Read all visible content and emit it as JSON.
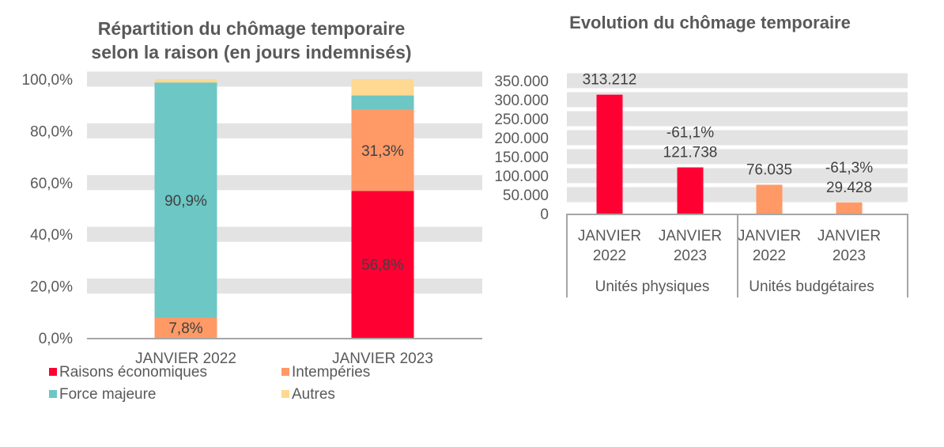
{
  "chart_data": [
    {
      "type": "bar",
      "stacked": true,
      "title_lines": [
        "Répartition du chômage temporaire",
        "selon la raison (en jours indemnisés)"
      ],
      "categories": [
        "JANVIER 2022",
        "JANVIER 2023"
      ],
      "ylim": [
        0,
        100
      ],
      "yticks": [
        "0,0%",
        "20,0%",
        "40,0%",
        "60,0%",
        "80,0%",
        "100,0%"
      ],
      "grid": "bands",
      "legend_position": "bottom-left",
      "series": [
        {
          "name": "Raisons économiques",
          "color": "#FF0033",
          "values": [
            0,
            56.8
          ],
          "labels": [
            "",
            "56,8%"
          ]
        },
        {
          "name": "Intempéries",
          "color": "#FF9966",
          "values": [
            7.8,
            31.3
          ],
          "labels": [
            "7,8%",
            "31,3%"
          ]
        },
        {
          "name": "Force majeure",
          "color": "#6CC7C5",
          "values": [
            90.9,
            5.6
          ],
          "labels": [
            "90,9%",
            ""
          ]
        },
        {
          "name": "Autres",
          "color": "#FFD892",
          "values": [
            1.3,
            6.3
          ],
          "labels": [
            "",
            ""
          ]
        }
      ]
    },
    {
      "type": "bar",
      "title": "Evolution du chômage temporaire",
      "ylim": [
        0,
        350000
      ],
      "yticks": [
        "0",
        "50.000",
        "100.000",
        "150.000",
        "200.000",
        "250.000",
        "300.000",
        "350.000"
      ],
      "grid": "bands",
      "groups": [
        {
          "name": "Unités physiques",
          "color": "#FF0033",
          "bars": [
            {
              "category": [
                "JANVIER",
                "2022"
              ],
              "value": 313212,
              "label": "313.212",
              "change": ""
            },
            {
              "category": [
                "JANVIER",
                "2023"
              ],
              "value": 121738,
              "label": "121.738",
              "change": "-61,1%"
            }
          ]
        },
        {
          "name": "Unités budgétaires",
          "color": "#FF9966",
          "bars": [
            {
              "category": [
                "JANVIER",
                "2022"
              ],
              "value": 76035,
              "label": "76.035",
              "change": ""
            },
            {
              "category": [
                "JANVIER",
                "2023"
              ],
              "value": 29428,
              "label": "29.428",
              "change": "-61,3%"
            }
          ]
        }
      ]
    }
  ]
}
